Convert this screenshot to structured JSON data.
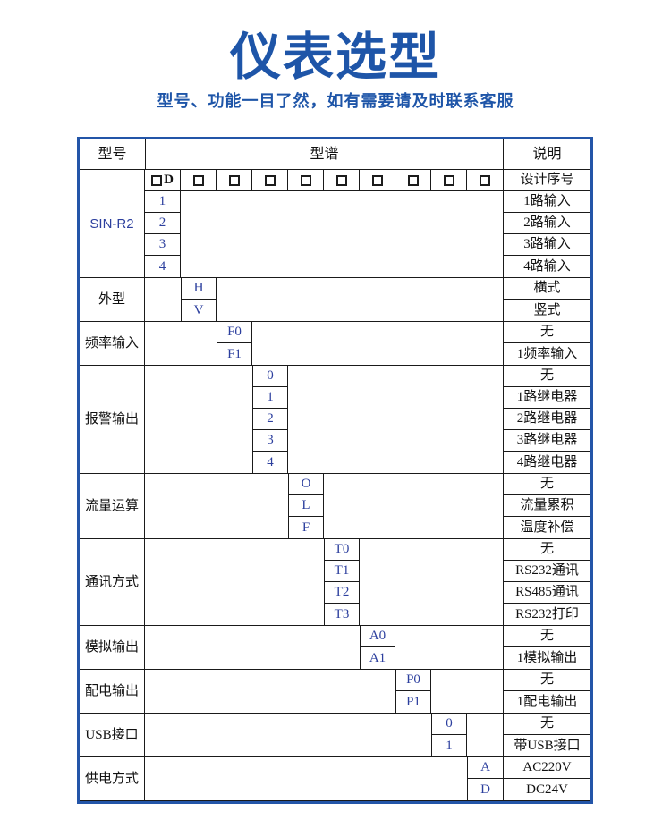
{
  "page": {
    "title": "仪表选型",
    "subtitle": "型号、功能一目了然，如有需要请及时联系客服"
  },
  "colors": {
    "accent_blue": "#1e55a8",
    "table_border_blue": "#2355a8",
    "code_text_navy": "#2c3f9e",
    "grid_line": "#1a1a1a"
  },
  "table": {
    "headers": {
      "model": "型号",
      "spectrum": "型谱",
      "description": "说明"
    },
    "design_row": {
      "code_letter": "D",
      "checkbox_count": 10,
      "desc": "设计序号"
    },
    "sections": [
      {
        "label": "SIN-R2",
        "column": 0,
        "rows": [
          {
            "code": "1",
            "desc": "1路输入"
          },
          {
            "code": "2",
            "desc": "2路输入"
          },
          {
            "code": "3",
            "desc": "3路输入"
          },
          {
            "code": "4",
            "desc": "4路输入"
          }
        ]
      },
      {
        "label": "外型",
        "column": 1,
        "rows": [
          {
            "code": "H",
            "desc": "横式"
          },
          {
            "code": "V",
            "desc": "竖式"
          }
        ]
      },
      {
        "label": "频率输入",
        "column": 2,
        "rows": [
          {
            "code": "F0",
            "desc": "无"
          },
          {
            "code": "F1",
            "desc": "1频率输入"
          }
        ]
      },
      {
        "label": "报警输出",
        "column": 3,
        "rows": [
          {
            "code": "0",
            "desc": "无"
          },
          {
            "code": "1",
            "desc": "1路继电器"
          },
          {
            "code": "2",
            "desc": "2路继电器"
          },
          {
            "code": "3",
            "desc": "3路继电器"
          },
          {
            "code": "4",
            "desc": "4路继电器"
          }
        ]
      },
      {
        "label": "流量运算",
        "column": 4,
        "rows": [
          {
            "code": "O",
            "desc": "无"
          },
          {
            "code": "L",
            "desc": "流量累积"
          },
          {
            "code": "F",
            "desc": "温度补偿"
          }
        ]
      },
      {
        "label": "通讯方式",
        "column": 5,
        "rows": [
          {
            "code": "T0",
            "desc": "无"
          },
          {
            "code": "T1",
            "desc": "RS232通讯"
          },
          {
            "code": "T2",
            "desc": "RS485通讯"
          },
          {
            "code": "T3",
            "desc": "RS232打印"
          }
        ]
      },
      {
        "label": "模拟输出",
        "column": 6,
        "rows": [
          {
            "code": "A0",
            "desc": "无"
          },
          {
            "code": "A1",
            "desc": "1模拟输出"
          }
        ]
      },
      {
        "label": "配电输出",
        "column": 7,
        "rows": [
          {
            "code": "P0",
            "desc": "无"
          },
          {
            "code": "P1",
            "desc": "1配电输出"
          }
        ]
      },
      {
        "label": "USB接口",
        "column": 8,
        "rows": [
          {
            "code": "0",
            "desc": "无"
          },
          {
            "code": "1",
            "desc": "带USB接口"
          }
        ]
      },
      {
        "label": "供电方式",
        "column": 9,
        "rows": [
          {
            "code": "A",
            "desc": "AC220V"
          },
          {
            "code": "D",
            "desc": "DC24V"
          }
        ]
      }
    ]
  }
}
